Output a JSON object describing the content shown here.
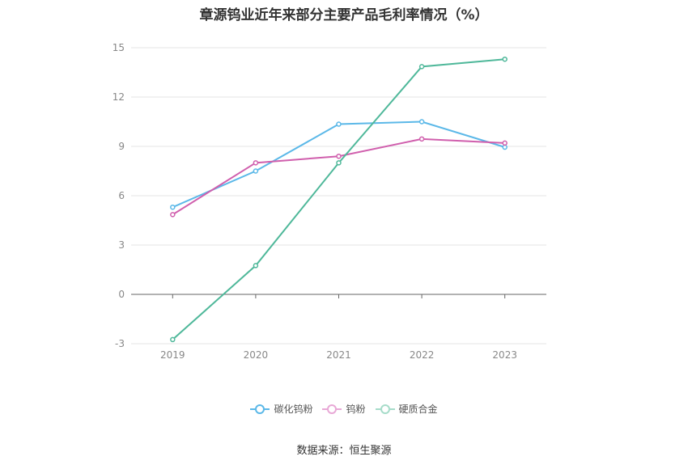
{
  "chart_data": {
    "type": "line",
    "title": "章源钨业近年来部分主要产品毛利率情况（%）",
    "categories": [
      "2019",
      "2020",
      "2021",
      "2022",
      "2023"
    ],
    "ylim": [
      -3,
      15
    ],
    "yticks": [
      -3,
      0,
      3,
      6,
      9,
      12,
      15
    ],
    "grid": true,
    "legend_position": "bottom",
    "series": [
      {
        "name": "碳化钨粉",
        "color": "#5bb8e8",
        "values": [
          5.3,
          7.5,
          10.35,
          10.5,
          8.95
        ]
      },
      {
        "name": "钨粉",
        "color": "#d05fad",
        "values": [
          4.85,
          8.0,
          8.4,
          9.45,
          9.2
        ]
      },
      {
        "name": "硬质合金",
        "color": "#4fb89a",
        "values": [
          -2.75,
          1.75,
          8.0,
          13.85,
          14.3
        ]
      }
    ]
  },
  "source": "数据来源：恒生聚源"
}
